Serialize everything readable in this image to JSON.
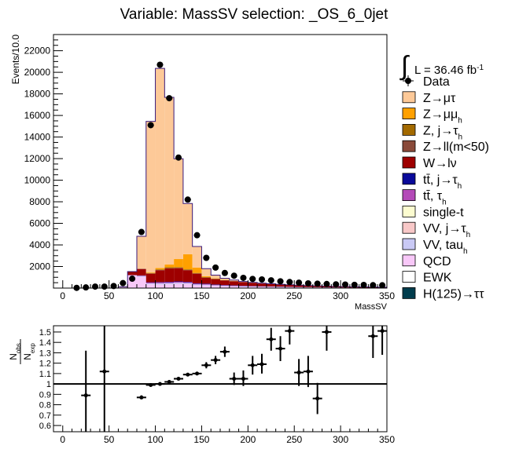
{
  "title": "Variable: MassSV selection: _OS_6_0jet",
  "lumi_label": "L = 36.46 fb",
  "lumi_sup": "-1",
  "chart_data": [
    {
      "type": "bar",
      "stacked": true,
      "ylabel": "Events/10.0",
      "xlabel": "MassSV",
      "xlim": [
        -10,
        350
      ],
      "ylim": [
        0,
        23500
      ],
      "x_ticks": [
        0,
        50,
        100,
        150,
        200,
        250,
        300,
        350
      ],
      "y_ticks": [
        2000,
        4000,
        6000,
        8000,
        10000,
        12000,
        14000,
        16000,
        18000,
        20000,
        22000
      ],
      "bin_edges": [
        10,
        20,
        30,
        40,
        50,
        60,
        70,
        80,
        90,
        100,
        110,
        120,
        130,
        140,
        150,
        160,
        170,
        180,
        190,
        200,
        210,
        220,
        230,
        240,
        250,
        260,
        270,
        280,
        290,
        300,
        310,
        320,
        330,
        340,
        350
      ],
      "series": [
        {
          "name": "QCD",
          "color": "#f8c8f8",
          "values": [
            0,
            0,
            0,
            0,
            10,
            80,
            1150,
            1050,
            350,
            330,
            350,
            400,
            380,
            260,
            240,
            190,
            160,
            140,
            120,
            110,
            100,
            90,
            80,
            70,
            60,
            50,
            45,
            40,
            35,
            30,
            25,
            22,
            20,
            18
          ]
        },
        {
          "name": "VV, tau",
          "color": "#c9c9f5",
          "values": [
            0,
            0,
            0,
            0,
            0,
            5,
            30,
            60,
            90,
            110,
            110,
            100,
            90,
            80,
            70,
            60,
            50,
            45,
            40,
            35,
            30,
            28,
            25,
            22,
            20,
            18,
            16,
            14,
            12,
            10,
            9,
            8,
            7,
            6
          ]
        },
        {
          "name": "tt̄, τ",
          "color": "#b44ab8",
          "values": [
            0,
            0,
            0,
            0,
            0,
            5,
            20,
            40,
            70,
            80,
            80,
            80,
            70,
            65,
            60,
            50,
            45,
            40,
            35,
            30,
            28,
            25,
            22,
            20,
            18,
            16,
            14,
            12,
            10,
            9,
            8,
            7,
            6,
            5
          ]
        },
        {
          "name": "tt̄, j→τ",
          "color": "#0a0a9a",
          "values": [
            0,
            0,
            0,
            0,
            0,
            5,
            10,
            20,
            30,
            35,
            40,
            40,
            40,
            35,
            35,
            30,
            28,
            25,
            22,
            20,
            18,
            16,
            14,
            12,
            10,
            9,
            8,
            7,
            6,
            5,
            5,
            4,
            4,
            3
          ]
        },
        {
          "name": "W→lν",
          "color": "#9e0000",
          "values": [
            0,
            0,
            0,
            0,
            0,
            20,
            300,
            600,
            800,
            1100,
            1250,
            1230,
            1080,
            900,
            560,
            500,
            430,
            380,
            330,
            290,
            250,
            220,
            190,
            170,
            150,
            130,
            115,
            100,
            90,
            80,
            70,
            60,
            55,
            50
          ]
        },
        {
          "name": "Z→ll(m<50)",
          "color": "#8a4a3a",
          "values": [
            0,
            0,
            0,
            0,
            0,
            0,
            15,
            20,
            20,
            20,
            20,
            20,
            20,
            15,
            15,
            10,
            10,
            8,
            6,
            5,
            4,
            3,
            3,
            2,
            2,
            2,
            1,
            1,
            1,
            1,
            1,
            1,
            1,
            1
          ]
        },
        {
          "name": "Z, j→τ",
          "color": "#a36a00",
          "values": [
            0,
            0,
            0,
            0,
            0,
            0,
            0,
            10,
            40,
            60,
            80,
            70,
            60,
            50,
            40,
            30,
            20,
            15,
            10,
            8,
            6,
            5,
            4,
            3,
            3,
            2,
            2,
            2,
            1,
            1,
            1,
            1,
            1,
            1
          ]
        },
        {
          "name": "Z→μμ",
          "color": "#ffa000",
          "values": [
            0,
            0,
            0,
            0,
            0,
            0,
            0,
            0,
            50,
            130,
            250,
            750,
            1400,
            500,
            80,
            30,
            20,
            15,
            10,
            8,
            6,
            5,
            4,
            3,
            3,
            2,
            2,
            2,
            1,
            1,
            1,
            1,
            1,
            1
          ]
        },
        {
          "name": "Z→μτ",
          "color": "#fdc998",
          "values": [
            0,
            0,
            0,
            0,
            0,
            0,
            0,
            3000,
            14000,
            18500,
            15500,
            9300,
            4700,
            1950,
            700,
            300,
            150,
            80,
            40,
            25,
            15,
            10,
            8,
            6,
            5,
            4,
            3,
            2,
            2,
            2,
            1,
            1,
            1,
            1
          ]
        }
      ],
      "data_points": {
        "name": "Data",
        "x": [
          15,
          25,
          35,
          45,
          55,
          65,
          75,
          85,
          95,
          105,
          115,
          125,
          135,
          145,
          155,
          165,
          175,
          185,
          195,
          205,
          215,
          225,
          235,
          245,
          255,
          265,
          275,
          285,
          295,
          305,
          315,
          325,
          335,
          345
        ],
        "y": [
          20,
          60,
          140,
          140,
          190,
          460,
          870,
          5200,
          15100,
          20700,
          17600,
          12100,
          8200,
          4900,
          2800,
          1900,
          1400,
          1150,
          950,
          850,
          800,
          720,
          630,
          560,
          500,
          440,
          410,
          380,
          350,
          330,
          300,
          290,
          270,
          260
        ]
      },
      "legend": [
        "Data",
        "Z→μτ",
        "Z→μμ",
        "Z, j→τ",
        "Z→ll(m<50)",
        "W→lν",
        "tt̄, j→τ",
        "tt̄, τ",
        "single-t",
        "VV, j→τ",
        "VV, tau",
        "QCD",
        "EWK",
        "H(125)→ττ"
      ],
      "legend_subscripts": [
        "",
        "",
        "h",
        "h",
        "",
        "",
        "h",
        "h",
        "",
        "h",
        "h",
        "",
        "",
        ""
      ],
      "legend_colors": [
        "#000000",
        "#fdc998",
        "#ffa000",
        "#a36a00",
        "#8a4a3a",
        "#9e0000",
        "#0a0a9a",
        "#b44ab8",
        "#fcfcd0",
        "#f8c8c8",
        "#c9c9f5",
        "#f8c8f8",
        "#ffffff",
        "#003c4c"
      ],
      "legend_placement": "right"
    },
    {
      "type": "scatter",
      "ylabel": "N_obs / N_exp",
      "xlim": [
        -10,
        350
      ],
      "ylim": [
        0.54,
        1.56
      ],
      "x_ticks": [
        0,
        50,
        100,
        150,
        200,
        250,
        300,
        350
      ],
      "y_ticks": [
        0.6,
        0.7,
        0.8,
        0.9,
        1,
        1.1,
        1.2,
        1.3,
        1.4,
        1.5
      ],
      "reference_line": 1,
      "points": [
        {
          "x": 25,
          "y": 0.89,
          "lo": 0.54,
          "hi": 1.32
        },
        {
          "x": 45,
          "y": 1.12,
          "lo": 0.54,
          "hi": 1.56
        },
        {
          "x": 85,
          "y": 0.87,
          "lo": 0.86,
          "hi": 0.89
        },
        {
          "x": 95,
          "y": 0.99,
          "lo": 0.985,
          "hi": 0.995
        },
        {
          "x": 105,
          "y": 1.0
        },
        {
          "x": 115,
          "y": 1.02
        },
        {
          "x": 125,
          "y": 1.05
        },
        {
          "x": 135,
          "y": 1.09
        },
        {
          "x": 145,
          "y": 1.1
        },
        {
          "x": 155,
          "y": 1.18,
          "lo": 1.15,
          "hi": 1.21
        },
        {
          "x": 165,
          "y": 1.23,
          "lo": 1.19,
          "hi": 1.27
        },
        {
          "x": 175,
          "y": 1.31,
          "lo": 1.26,
          "hi": 1.36
        },
        {
          "x": 185,
          "y": 1.05,
          "lo": 0.99,
          "hi": 1.11
        },
        {
          "x": 195,
          "y": 1.05,
          "lo": 0.98,
          "hi": 1.13
        },
        {
          "x": 205,
          "y": 1.18,
          "lo": 1.09,
          "hi": 1.27
        },
        {
          "x": 215,
          "y": 1.19,
          "lo": 1.1,
          "hi": 1.29
        },
        {
          "x": 225,
          "y": 1.43,
          "lo": 1.32,
          "hi": 1.54
        },
        {
          "x": 235,
          "y": 1.34,
          "lo": 1.22,
          "hi": 1.46
        },
        {
          "x": 245,
          "y": 1.51,
          "lo": 1.38,
          "hi": 1.56
        },
        {
          "x": 255,
          "y": 1.11,
          "lo": 0.98,
          "hi": 1.24
        },
        {
          "x": 265,
          "y": 1.12,
          "lo": 0.97,
          "hi": 1.27
        },
        {
          "x": 275,
          "y": 0.86,
          "lo": 0.71,
          "hi": 1.01
        },
        {
          "x": 285,
          "y": 1.5,
          "lo": 1.32,
          "hi": 1.56
        },
        {
          "x": 335,
          "y": 1.46,
          "lo": 1.25,
          "hi": 1.56
        },
        {
          "x": 345,
          "y": 1.51,
          "lo": 1.28,
          "hi": 1.56
        }
      ]
    }
  ]
}
